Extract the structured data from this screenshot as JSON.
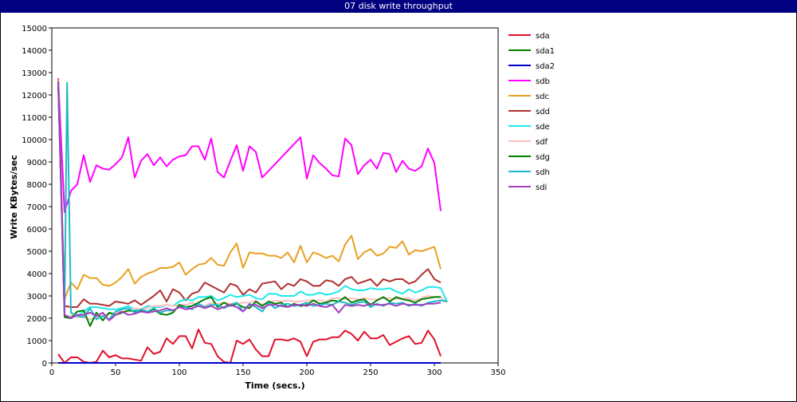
{
  "window_title": "07 disk write throughput",
  "chart_data": {
    "type": "line",
    "title": "07 disk write throughput",
    "xlabel": "Time (secs.)",
    "ylabel": "Write KBytes/sec",
    "xlim": [
      0,
      350
    ],
    "ylim": [
      0,
      15000
    ],
    "xticks": [
      0,
      50,
      100,
      150,
      200,
      250,
      300,
      350
    ],
    "yticks": [
      0,
      1000,
      2000,
      3000,
      4000,
      5000,
      6000,
      7000,
      8000,
      9000,
      10000,
      11000,
      12000,
      13000,
      14000,
      15000
    ],
    "grid": false,
    "legend_position": "right",
    "series": [
      {
        "name": "sda",
        "color": "#e0102a",
        "x": [
          5,
          10,
          15,
          20,
          25,
          30,
          35,
          40,
          45,
          50,
          55,
          60,
          65,
          70,
          75,
          80,
          85,
          90,
          95,
          100,
          105,
          110,
          115,
          120,
          125,
          130,
          135,
          140,
          145,
          150,
          155,
          160,
          165,
          170,
          175,
          180,
          185,
          190,
          195,
          200,
          205,
          210,
          215,
          220,
          225,
          230,
          235,
          240,
          245,
          250,
          255,
          260,
          265,
          270,
          275,
          280,
          285,
          290,
          295,
          300,
          305
        ],
        "values": [
          400,
          0,
          250,
          250,
          50,
          0,
          50,
          550,
          250,
          350,
          200,
          200,
          150,
          100,
          700,
          400,
          500,
          1100,
          850,
          1200,
          1200,
          650,
          1500,
          900,
          850,
          300,
          50,
          0,
          1000,
          850,
          1050,
          600,
          300,
          300,
          1050,
          1050,
          1000,
          1100,
          950,
          300,
          950,
          1050,
          1050,
          1150,
          1150,
          1450,
          1300,
          1000,
          1400,
          1100,
          1100,
          1250,
          800,
          950,
          1100,
          1200,
          850,
          900,
          1450,
          1050,
          300
        ]
      },
      {
        "name": "sda1",
        "color": "#008000",
        "x": [
          5,
          305
        ],
        "values": [
          0,
          0
        ]
      },
      {
        "name": "sda2",
        "color": "#0000cd",
        "x": [
          5,
          305
        ],
        "values": [
          0,
          0
        ]
      },
      {
        "name": "sdb",
        "color": "#ff00ff",
        "x": [
          5,
          10,
          15,
          20,
          25,
          30,
          35,
          40,
          45,
          50,
          55,
          60,
          65,
          70,
          75,
          80,
          85,
          90,
          95,
          100,
          105,
          110,
          115,
          120,
          125,
          130,
          135,
          140,
          145,
          150,
          155,
          160,
          165,
          170,
          175,
          180,
          185,
          190,
          195,
          200,
          205,
          210,
          215,
          220,
          225,
          230,
          235,
          240,
          245,
          250,
          255,
          260,
          265,
          270,
          275,
          280,
          285,
          290,
          295,
          300,
          305
        ],
        "values": [
          12750,
          6750,
          7700,
          8000,
          9300,
          8100,
          8850,
          8700,
          8650,
          8900,
          9200,
          10100,
          8300,
          9050,
          9350,
          8850,
          9200,
          8800,
          9100,
          9250,
          9300,
          9700,
          9700,
          9100,
          10050,
          8550,
          8300,
          9050,
          9750,
          8600,
          9700,
          9450,
          8300,
          8600,
          8900,
          9200,
          9500,
          9800,
          10100,
          8250,
          9300,
          8950,
          8700,
          8400,
          8350,
          10050,
          9750,
          8450,
          8850,
          9100,
          8700,
          9400,
          9350,
          8550,
          9050,
          8700,
          8600,
          8800,
          9600,
          8950,
          6800
        ]
      },
      {
        "name": "sdc",
        "color": "#e8a020",
        "x": [
          5,
          10,
          15,
          20,
          25,
          30,
          35,
          40,
          45,
          50,
          55,
          60,
          65,
          70,
          75,
          80,
          85,
          90,
          95,
          100,
          105,
          110,
          115,
          120,
          125,
          130,
          135,
          140,
          145,
          150,
          155,
          160,
          165,
          170,
          175,
          180,
          185,
          190,
          195,
          200,
          205,
          210,
          215,
          220,
          225,
          230,
          235,
          240,
          245,
          250,
          255,
          260,
          265,
          270,
          275,
          280,
          285,
          290,
          295,
          300,
          305
        ],
        "values": [
          12700,
          2850,
          3600,
          3300,
          3950,
          3800,
          3800,
          3500,
          3450,
          3600,
          3850,
          4200,
          3550,
          3850,
          4000,
          4100,
          4250,
          4250,
          4300,
          4500,
          3950,
          4200,
          4400,
          4450,
          4700,
          4400,
          4350,
          4950,
          5350,
          4250,
          4950,
          4900,
          4900,
          4800,
          4800,
          4700,
          4950,
          4500,
          5250,
          4500,
          4950,
          4850,
          4700,
          4800,
          4550,
          5300,
          5700,
          4650,
          4950,
          5100,
          4800,
          4900,
          5200,
          5150,
          5450,
          4850,
          5050,
          5000,
          5100,
          5200,
          4200
        ]
      },
      {
        "name": "sdd",
        "color": "#b03030",
        "x": [
          5,
          10,
          15,
          20,
          25,
          30,
          35,
          40,
          45,
          50,
          55,
          60,
          65,
          70,
          75,
          80,
          85,
          90,
          95,
          100,
          105,
          110,
          115,
          120,
          125,
          130,
          135,
          140,
          145,
          150,
          155,
          160,
          165,
          170,
          175,
          180,
          185,
          190,
          195,
          200,
          205,
          210,
          215,
          220,
          225,
          230,
          235,
          240,
          245,
          250,
          255,
          260,
          265,
          270,
          275,
          280,
          285,
          290,
          295,
          300,
          305
        ],
        "values": [
          12600,
          2550,
          2500,
          2500,
          2850,
          2650,
          2650,
          2600,
          2550,
          2750,
          2700,
          2650,
          2800,
          2600,
          2800,
          3000,
          3250,
          2750,
          3300,
          3150,
          2800,
          3100,
          3200,
          3600,
          3450,
          3300,
          3150,
          3550,
          3450,
          3050,
          3300,
          3150,
          3550,
          3600,
          3650,
          3300,
          3550,
          3450,
          3750,
          3650,
          3450,
          3450,
          3700,
          3650,
          3450,
          3750,
          3850,
          3550,
          3650,
          3750,
          3450,
          3750,
          3650,
          3750,
          3750,
          3550,
          3650,
          3950,
          4200,
          3750,
          3600
        ]
      },
      {
        "name": "sde",
        "color": "#20e8e8",
        "x": [
          5,
          10,
          15,
          20,
          25,
          30,
          35,
          40,
          45,
          50,
          55,
          60,
          65,
          70,
          75,
          80,
          85,
          90,
          95,
          100,
          105,
          110,
          115,
          120,
          125,
          130,
          135,
          140,
          145,
          150,
          155,
          160,
          165,
          170,
          175,
          180,
          185,
          190,
          195,
          200,
          205,
          210,
          215,
          220,
          225,
          230,
          235,
          240,
          245,
          250,
          255,
          260,
          265,
          270,
          275,
          280,
          285,
          290,
          295,
          300,
          305,
          310
        ],
        "values": [
          12600,
          2150,
          2050,
          2100,
          2300,
          2500,
          2500,
          2450,
          2400,
          2400,
          2450,
          2550,
          2350,
          2400,
          2550,
          2500,
          2500,
          2600,
          2550,
          2750,
          2850,
          2800,
          2950,
          2950,
          3000,
          2800,
          2900,
          3050,
          2950,
          3000,
          3050,
          2900,
          2850,
          3100,
          3100,
          3000,
          3000,
          3000,
          3200,
          3050,
          3050,
          3150,
          3050,
          3100,
          3200,
          3450,
          3300,
          3250,
          3250,
          3350,
          3300,
          3300,
          3350,
          3200,
          3100,
          3300,
          3150,
          3250,
          3400,
          3400,
          3350,
          2750
        ]
      },
      {
        "name": "sdf",
        "color": "#ffc0c0",
        "x": [
          5,
          10,
          15,
          20,
          25,
          30,
          35,
          40,
          45,
          50,
          55,
          60,
          65,
          70,
          75,
          80,
          85,
          90,
          95,
          100,
          105,
          110,
          115,
          120,
          125,
          130,
          135,
          140,
          145,
          150,
          155,
          160,
          165,
          170,
          175,
          180,
          185,
          190,
          195,
          200,
          205,
          210,
          215,
          220,
          225,
          230,
          235,
          240,
          245,
          250,
          255,
          260,
          265,
          270,
          275,
          280,
          285,
          290,
          295,
          300,
          305,
          310
        ],
        "values": [
          12500,
          2100,
          2100,
          2050,
          2050,
          1950,
          2050,
          2150,
          2200,
          2250,
          2300,
          2300,
          2450,
          2400,
          2450,
          2550,
          2550,
          2600,
          2550,
          2600,
          2600,
          2700,
          2600,
          2550,
          2700,
          2650,
          2700,
          2650,
          2650,
          2700,
          2700,
          2800,
          2600,
          2700,
          2800,
          2750,
          2800,
          2750,
          2750,
          2800,
          2800,
          2800,
          2750,
          2900,
          2900,
          2850,
          2900,
          2850,
          2900,
          2850,
          2850,
          2900,
          2900,
          2850,
          2900,
          2900,
          2800,
          2900,
          3000,
          2950,
          2950,
          2700
        ]
      },
      {
        "name": "sdg",
        "color": "#008000",
        "x": [
          5,
          10,
          15,
          20,
          25,
          30,
          35,
          40,
          45,
          50,
          55,
          60,
          65,
          70,
          75,
          80,
          85,
          90,
          95,
          100,
          105,
          110,
          115,
          120,
          125,
          130,
          135,
          140,
          145,
          150,
          155,
          160,
          165,
          170,
          175,
          180,
          185,
          190,
          195,
          200,
          205,
          210,
          215,
          220,
          225,
          230,
          235,
          240,
          245,
          250,
          255,
          260,
          265,
          270,
          275,
          280,
          285,
          290,
          295,
          300,
          305
        ],
        "values": [
          12600,
          2050,
          2000,
          2300,
          2350,
          1650,
          2250,
          1900,
          2250,
          2150,
          2250,
          2350,
          2300,
          2350,
          2300,
          2400,
          2200,
          2150,
          2250,
          2600,
          2500,
          2550,
          2700,
          2850,
          2950,
          2500,
          2700,
          2550,
          2650,
          2500,
          2450,
          2750,
          2550,
          2750,
          2650,
          2700,
          2500,
          2650,
          2550,
          2600,
          2800,
          2650,
          2700,
          2800,
          2750,
          2950,
          2700,
          2800,
          2850,
          2600,
          2800,
          2950,
          2750,
          2950,
          2850,
          2800,
          2700,
          2850,
          2900,
          2950,
          2950
        ]
      },
      {
        "name": "sdh",
        "color": "#20b8c8",
        "x": [
          5,
          10,
          12,
          15,
          20,
          25,
          30,
          35,
          40,
          45,
          50,
          55,
          60,
          65,
          70,
          75,
          80,
          85,
          90,
          95,
          100,
          105,
          110,
          115,
          120,
          125,
          130,
          135,
          140,
          145,
          150,
          155,
          160,
          165,
          170,
          175,
          180,
          185,
          190,
          195,
          200,
          205,
          210,
          215,
          220,
          225,
          230,
          235,
          240,
          245,
          250,
          255,
          260,
          265,
          270,
          275,
          280,
          285,
          290,
          295,
          300,
          305,
          310
        ],
        "values": [
          12500,
          2300,
          12550,
          2250,
          2100,
          2050,
          2450,
          1950,
          2100,
          1950,
          2300,
          2400,
          2450,
          2250,
          2400,
          2300,
          2450,
          2250,
          2350,
          2350,
          2500,
          2500,
          2400,
          2650,
          2500,
          2600,
          2600,
          2450,
          2600,
          2700,
          2300,
          2650,
          2500,
          2300,
          2700,
          2450,
          2600,
          2650,
          2550,
          2600,
          2700,
          2550,
          2600,
          2650,
          2600,
          2750,
          2700,
          2600,
          2700,
          2750,
          2500,
          2650,
          2550,
          2700,
          2650,
          2700,
          2550,
          2650,
          2550,
          2700,
          2750,
          2800,
          2750
        ]
      },
      {
        "name": "sdi",
        "color": "#a040c0",
        "x": [
          5,
          10,
          15,
          20,
          25,
          30,
          35,
          40,
          45,
          50,
          55,
          60,
          65,
          70,
          75,
          80,
          85,
          90,
          95,
          100,
          105,
          110,
          115,
          120,
          125,
          130,
          135,
          140,
          145,
          150,
          155,
          160,
          165,
          170,
          175,
          180,
          185,
          190,
          195,
          200,
          205,
          210,
          215,
          220,
          225,
          230,
          235,
          240,
          245,
          250,
          255,
          260,
          265,
          270,
          275,
          280,
          285,
          290,
          295,
          300,
          305
        ],
        "values": [
          12600,
          2150,
          2000,
          2150,
          2150,
          2250,
          2100,
          2250,
          1900,
          2150,
          2300,
          2150,
          2200,
          2300,
          2250,
          2300,
          2350,
          2450,
          2350,
          2500,
          2400,
          2450,
          2550,
          2450,
          2550,
          2400,
          2500,
          2600,
          2500,
          2300,
          2600,
          2600,
          2450,
          2600,
          2600,
          2550,
          2500,
          2600,
          2600,
          2550,
          2650,
          2550,
          2500,
          2600,
          2250,
          2600,
          2550,
          2600,
          2550,
          2650,
          2600,
          2600,
          2650,
          2550,
          2650,
          2600,
          2600,
          2600,
          2650,
          2650,
          2700
        ]
      }
    ]
  }
}
